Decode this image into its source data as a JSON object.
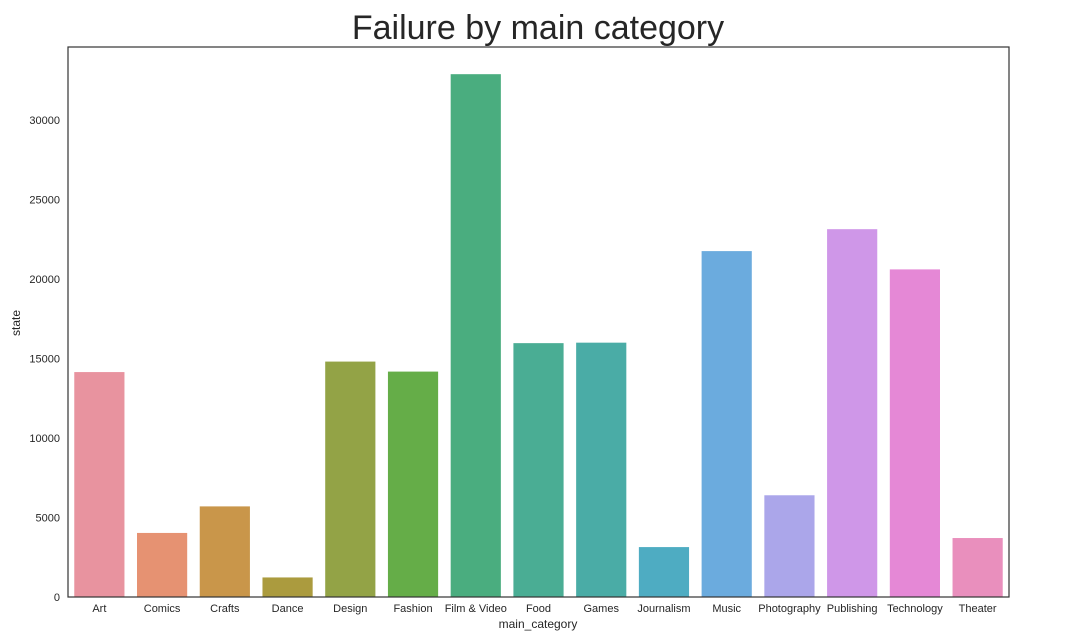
{
  "chart_data": {
    "type": "bar",
    "title": "Failure by main category",
    "xlabel": "main_category",
    "ylabel": "state",
    "categories": [
      "Art",
      "Comics",
      "Crafts",
      "Dance",
      "Design",
      "Fashion",
      "Film & Video",
      "Food",
      "Games",
      "Journalism",
      "Music",
      "Photography",
      "Publishing",
      "Technology",
      "Theater"
    ],
    "values": [
      14150,
      4030,
      5700,
      1230,
      14810,
      14180,
      32890,
      15970,
      16000,
      3140,
      21760,
      6400,
      23140,
      20610,
      3710
    ],
    "colors": [
      "#e8939f",
      "#e69272",
      "#c9964a",
      "#ab9b3e",
      "#93a346",
      "#65ad48",
      "#4aad7f",
      "#4aad94",
      "#4aaca6",
      "#4eacc2",
      "#6babde",
      "#aba6ea",
      "#cf97e8",
      "#e588d6",
      "#e98fbd"
    ],
    "yticks": [
      0,
      5000,
      10000,
      15000,
      20000,
      25000,
      30000
    ],
    "ylim": [
      0,
      34600
    ],
    "grid": false,
    "legend": "none"
  }
}
